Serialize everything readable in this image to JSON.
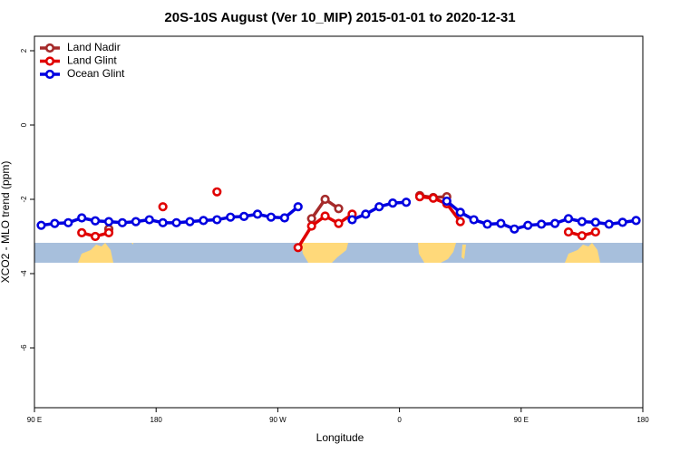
{
  "chart_data": {
    "type": "line",
    "title": "20S-10S August (Ver 10_MIP)   2015-01-01 to 2020-12-31",
    "xlabel": "Longitude",
    "ylabel": "XCO2 - MLO trend (ppm)",
    "x": [
      95,
      105,
      115,
      125,
      135,
      145,
      155,
      165,
      175,
      185,
      195,
      205,
      215,
      225,
      235,
      245,
      255,
      265,
      275,
      285,
      295,
      305,
      315,
      325,
      335,
      345,
      355,
      365,
      375,
      385,
      395,
      405,
      415,
      425,
      435,
      445,
      455,
      465,
      475,
      485,
      495,
      505,
      515,
      525,
      535
    ],
    "series": [
      {
        "name": "Land Nadir",
        "color": "#a52a2a",
        "values": [
          null,
          null,
          null,
          null,
          null,
          -2.8,
          null,
          null,
          null,
          null,
          null,
          null,
          null,
          null,
          null,
          null,
          null,
          null,
          null,
          null,
          -2.52,
          -2.0,
          -2.25,
          null,
          null,
          null,
          null,
          null,
          -1.9,
          -1.95,
          -1.93,
          null,
          null,
          null,
          null,
          null,
          null,
          null,
          null,
          null,
          null,
          null,
          null,
          null,
          null
        ]
      },
      {
        "name": "Land Glint",
        "color": "#e00000",
        "values": [
          null,
          null,
          null,
          -2.9,
          -3.0,
          -2.9,
          null,
          null,
          null,
          -2.2,
          null,
          null,
          null,
          -1.8,
          null,
          null,
          null,
          null,
          null,
          -3.3,
          -2.72,
          -2.45,
          -2.65,
          -2.4,
          null,
          null,
          null,
          null,
          -1.93,
          -1.97,
          -2.12,
          -2.6,
          null,
          null,
          null,
          null,
          null,
          null,
          null,
          -2.88,
          -2.98,
          -2.88,
          null,
          null,
          null
        ]
      },
      {
        "name": "Ocean Glint",
        "color": "#0000e0",
        "values": [
          -2.7,
          -2.65,
          -2.63,
          -2.5,
          -2.58,
          -2.6,
          -2.63,
          -2.6,
          -2.55,
          -2.63,
          -2.63,
          -2.6,
          -2.57,
          -2.55,
          -2.48,
          -2.46,
          -2.4,
          -2.48,
          -2.5,
          -2.2,
          null,
          null,
          null,
          -2.55,
          -2.4,
          -2.2,
          -2.1,
          -2.08,
          null,
          null,
          -2.05,
          -2.35,
          -2.55,
          -2.67,
          -2.65,
          -2.8,
          -2.7,
          -2.67,
          -2.65,
          -2.52,
          -2.6,
          -2.62,
          -2.67,
          -2.62,
          -2.57
        ]
      }
    ],
    "xlim": [
      90,
      540
    ],
    "xticks": [
      {
        "value": 90,
        "label": "90 E"
      },
      180,
      {
        "value": 270,
        "label": "90 W"
      },
      {
        "value": 360,
        "label": "0"
      },
      {
        "value": 450,
        "label": "90 E"
      },
      {
        "value": 540,
        "label": "180"
      }
    ],
    "ylim": [
      -7.61,
      2.39
    ],
    "yticks": [
      2,
      0,
      -2,
      -4,
      -6
    ],
    "legend": "top-left"
  }
}
